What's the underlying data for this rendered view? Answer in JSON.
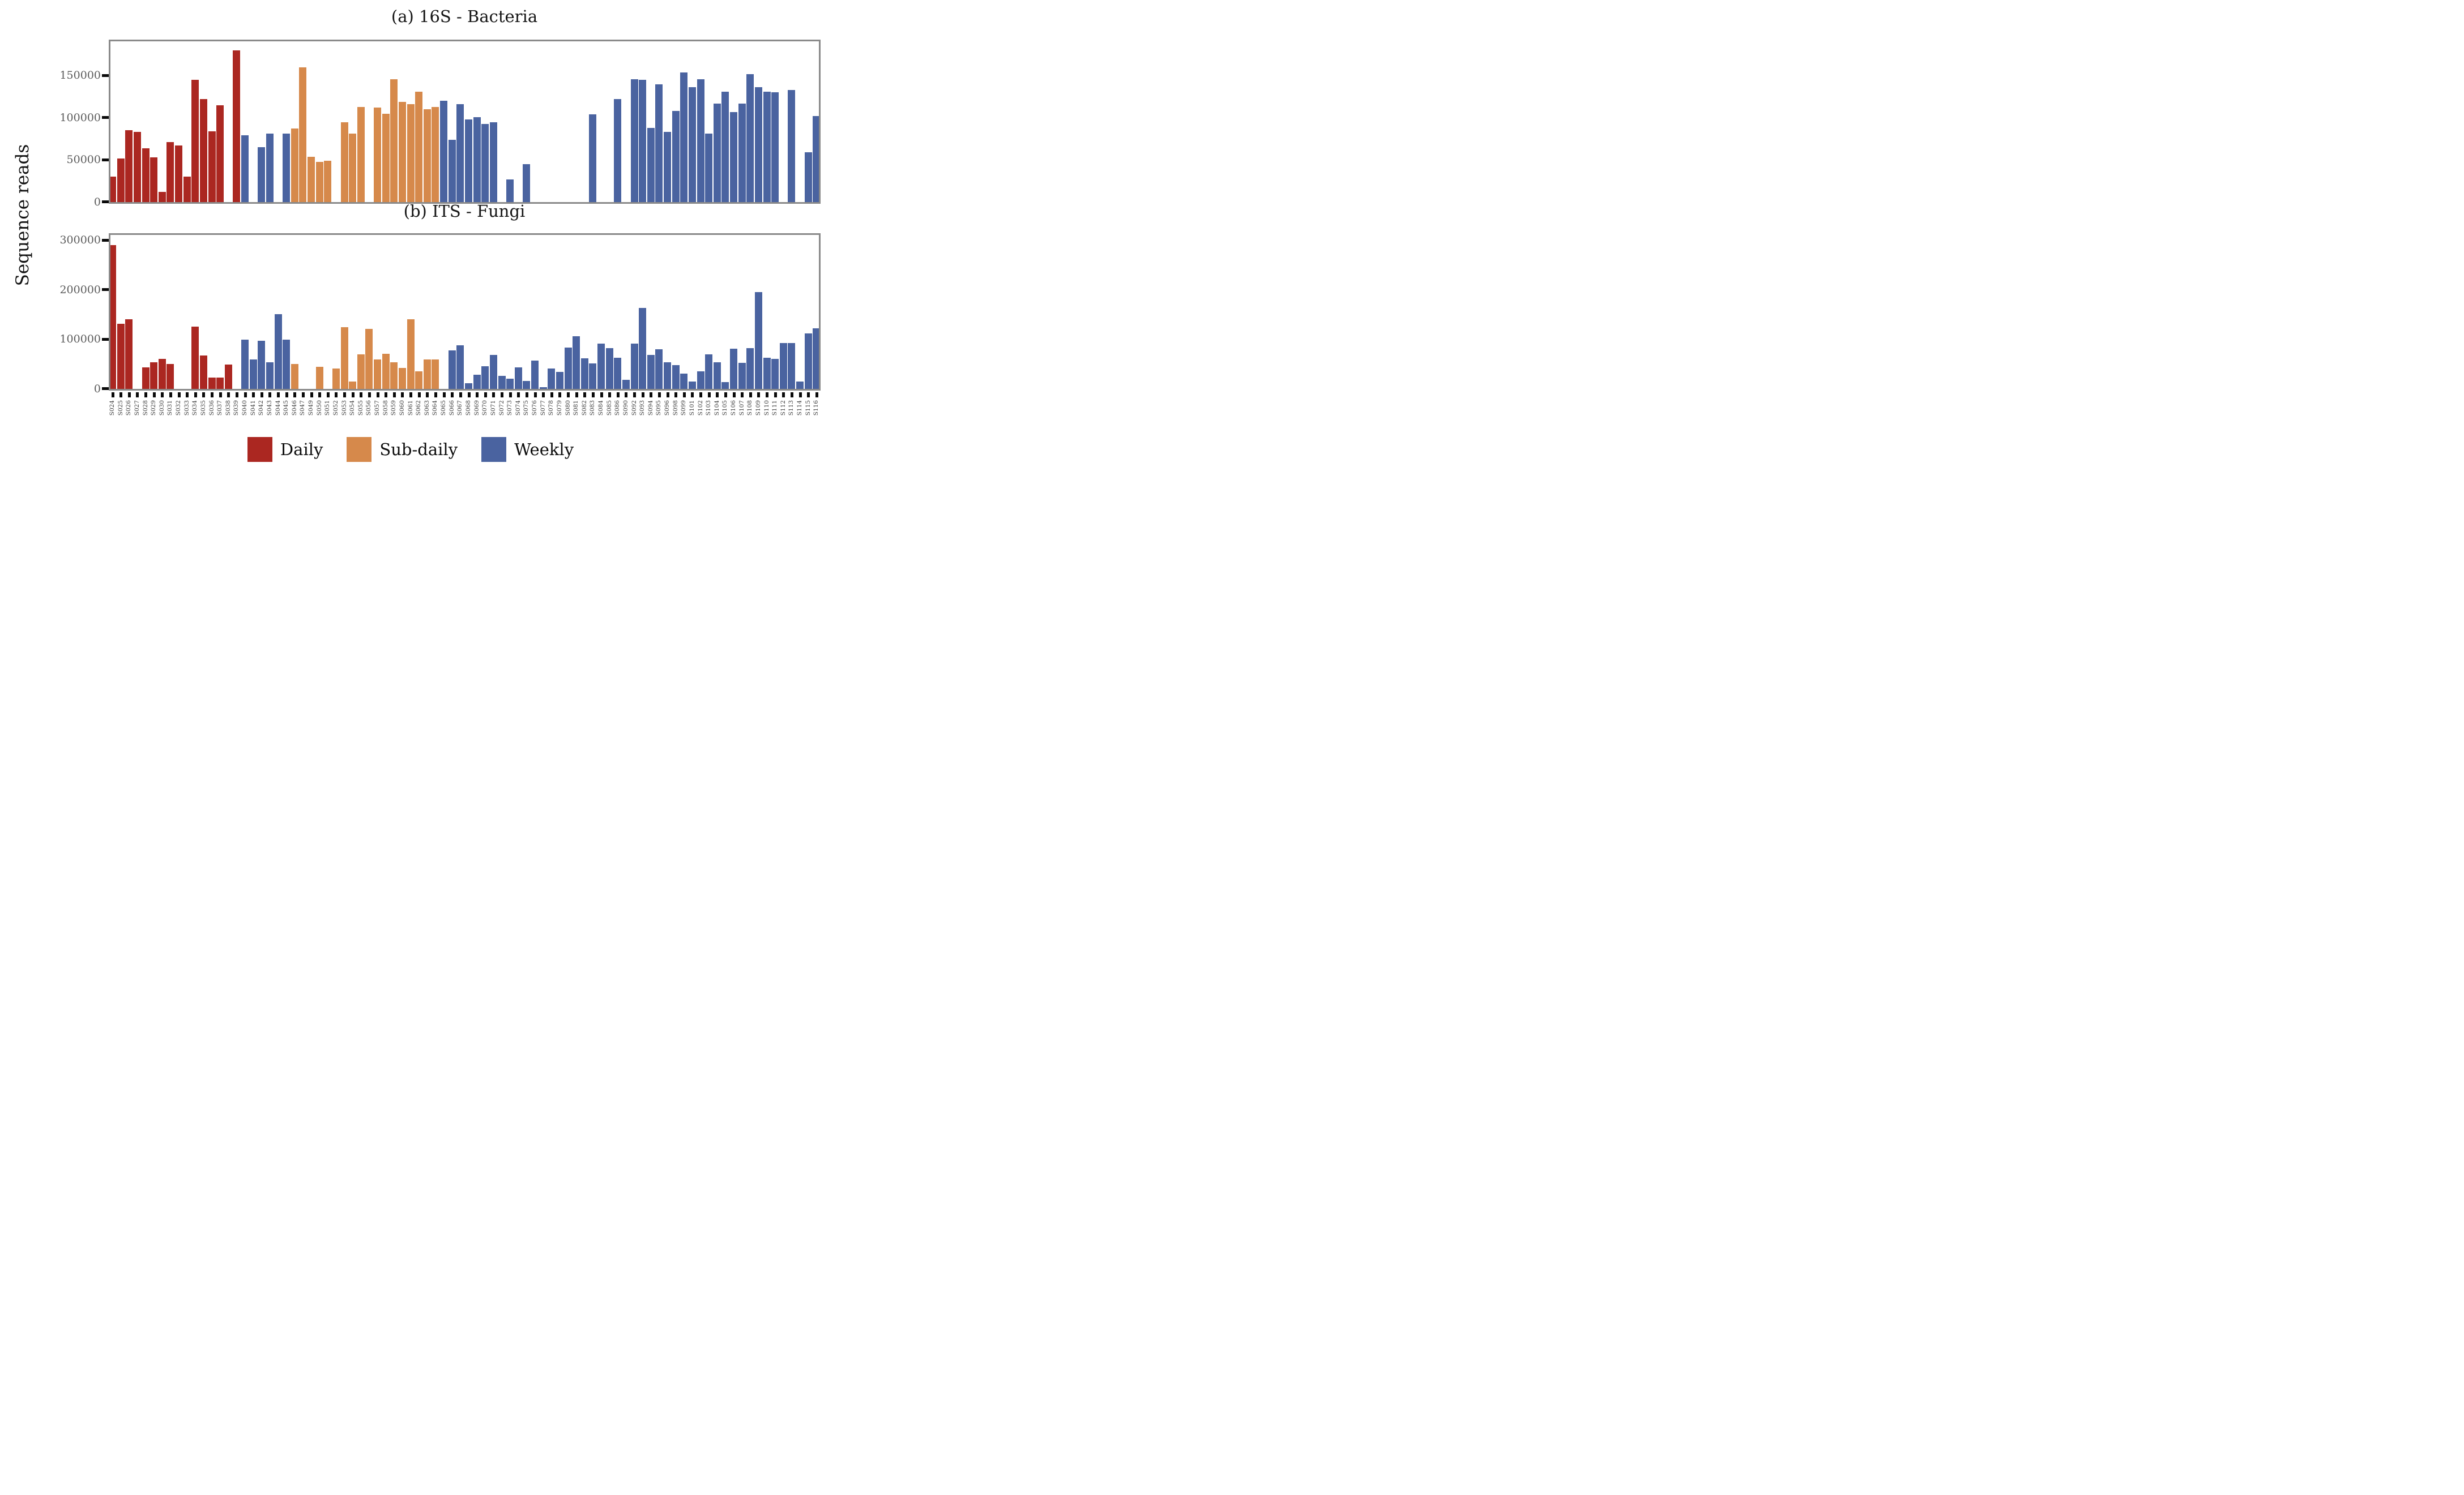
{
  "figure": {
    "y_axis_title": "Sequence reads",
    "frame_color": "#8a8a8a",
    "background": "#ffffff"
  },
  "legend": {
    "position": "bottom-center",
    "items": [
      {
        "label": "Daily",
        "group": "daily",
        "color": "#AB2721"
      },
      {
        "label": "Sub-daily",
        "group": "subdaily",
        "color": "#D6894B"
      },
      {
        "label": "Weekly",
        "group": "weekly",
        "color": "#4A63A0"
      }
    ]
  },
  "chart_data": {
    "type": "bar",
    "grid": false,
    "ylabel": "Sequence reads",
    "legend_position": "bottom",
    "categories": [
      "S024",
      "S025",
      "S026",
      "S027",
      "S028",
      "S029",
      "S030",
      "S031",
      "S032",
      "S033",
      "S034",
      "S035",
      "S036",
      "S037",
      "S038",
      "S039",
      "S040",
      "S041",
      "S042",
      "S043",
      "S044",
      "S045",
      "S046",
      "S047",
      "S049",
      "S050",
      "S051",
      "S052",
      "S053",
      "S054",
      "S055",
      "S056",
      "S057",
      "S058",
      "S059",
      "S060",
      "S061",
      "S062",
      "S063",
      "S064",
      "S065",
      "S066",
      "S067",
      "S068",
      "S069",
      "S070",
      "S071",
      "S072",
      "S073",
      "S074",
      "S075",
      "S076",
      "S077",
      "S078",
      "S079",
      "S080",
      "S081",
      "S082",
      "S083",
      "S084",
      "S085",
      "S086",
      "S090",
      "S092",
      "S093",
      "S094",
      "S095",
      "S096",
      "S098",
      "S099",
      "S101",
      "S102",
      "S103",
      "S104",
      "S105",
      "S106",
      "S107",
      "S108",
      "S109",
      "S110",
      "S111",
      "S112",
      "S113",
      "S114",
      "S115",
      "S116"
    ],
    "group_spans": [
      [
        "daily",
        0,
        15
      ],
      [
        "weekly",
        16,
        21
      ],
      [
        "subdaily",
        22,
        39
      ],
      [
        "weekly",
        40,
        85
      ]
    ],
    "series": [
      {
        "name": "(a) 16S - Bacteria",
        "panel": "a",
        "ylim": [
          0,
          190000
        ],
        "yticks": [
          0,
          50000,
          100000,
          150000
        ],
        "values": [
          30000,
          52000,
          85000,
          83000,
          64000,
          53000,
          12000,
          71000,
          67000,
          30000,
          145000,
          122000,
          84000,
          115000,
          null,
          180000,
          79000,
          null,
          65000,
          81000,
          null,
          81000,
          87000,
          160000,
          54000,
          48000,
          49000,
          null,
          95000,
          81000,
          113000,
          null,
          112000,
          105000,
          146000,
          119000,
          116000,
          131000,
          110000,
          113000,
          120000,
          74000,
          116000,
          98000,
          101000,
          93000,
          95000,
          null,
          27000,
          null,
          45000,
          null,
          null,
          null,
          null,
          null,
          null,
          null,
          104000,
          null,
          null,
          122000,
          null,
          146000,
          145000,
          88000,
          140000,
          83000,
          108000,
          154000,
          136000,
          146000,
          81000,
          117000,
          131000,
          107000,
          117000,
          152000,
          136000,
          131000,
          130000,
          null,
          133000,
          null,
          59000,
          102000
        ]
      },
      {
        "name": "(b) ITS - Fungi",
        "panel": "b",
        "ylim": [
          0,
          310000
        ],
        "yticks": [
          0,
          100000,
          200000,
          300000
        ],
        "values": [
          291000,
          132000,
          141000,
          null,
          43000,
          54000,
          61000,
          50000,
          null,
          null,
          126000,
          68000,
          23000,
          23000,
          49000,
          null,
          100000,
          60000,
          97000,
          54000,
          151000,
          100000,
          50000,
          null,
          null,
          45000,
          null,
          41000,
          125000,
          15000,
          70000,
          121000,
          60000,
          71000,
          54000,
          42000,
          141000,
          35000,
          60000,
          59000,
          null,
          78000,
          88000,
          11000,
          29000,
          46000,
          69000,
          26000,
          21000,
          44000,
          16000,
          57000,
          3000,
          41000,
          34000,
          83000,
          107000,
          62000,
          51000,
          91000,
          82000,
          63000,
          18000,
          92000,
          164000,
          69000,
          80000,
          54000,
          48000,
          31000,
          15000,
          35000,
          70000,
          54000,
          14000,
          81000,
          53000,
          82000,
          196000,
          63000,
          61000,
          93000,
          93000,
          15000,
          112000,
          122000
        ]
      }
    ]
  }
}
